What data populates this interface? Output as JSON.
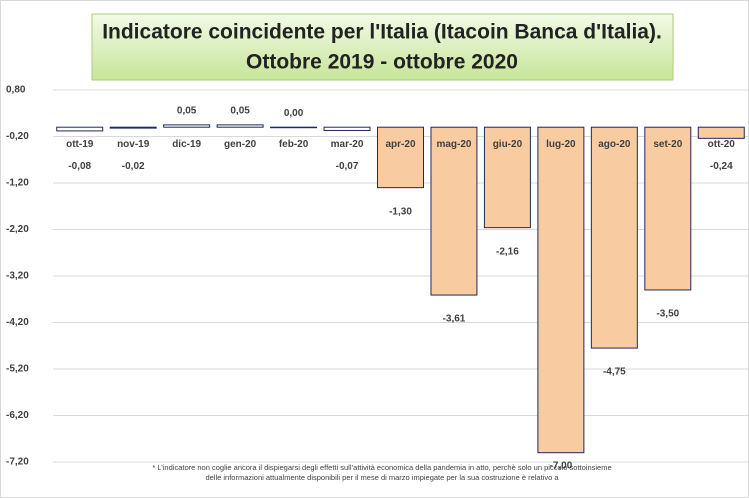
{
  "chart_data": {
    "type": "bar",
    "title": "Indicatore coincidente per l'Italia (Itacoin Banca d'Italia).",
    "subtitle": "Ottobre 2019 - ottobre 2020",
    "categories": [
      "ott-19",
      "nov-19",
      "dic-19",
      "gen-20",
      "feb-20",
      "mar-20",
      "apr-20",
      "mag-20",
      "giu-20",
      "lug-20",
      "ago-20",
      "set-20",
      "ott-20"
    ],
    "values": [
      -0.08,
      -0.02,
      0.05,
      0.05,
      0.0,
      -0.07,
      -1.3,
      -3.61,
      -2.16,
      -7.0,
      -4.75,
      -3.5,
      -0.24
    ],
    "value_labels": [
      "-0,08",
      "-0,02",
      "0,05",
      "0,05",
      "0,00",
      "-0,07",
      "-1,30",
      "-3,61",
      "-2,16",
      "-7,00",
      "-4,75",
      "-3,50",
      "-0,24"
    ],
    "colors": [
      "#ffffff",
      "#ffffff",
      "#ffffff",
      "#ffffff",
      "#ffffff",
      "#ffffff",
      "#f8cba0",
      "#f8cba0",
      "#f8cba0",
      "#f8cba0",
      "#f8cba0",
      "#f8cba0",
      "#f8cba0"
    ],
    "ylim": [
      -7.2,
      0.8
    ],
    "yticks": [
      {
        "value": 0.8,
        "label": "0,80"
      },
      {
        "value": -0.2,
        "label": "-0,20"
      },
      {
        "value": -1.2,
        "label": "-1,20"
      },
      {
        "value": -2.2,
        "label": "-2,20"
      },
      {
        "value": -3.2,
        "label": "-3,20"
      },
      {
        "value": -4.2,
        "label": "-4,20"
      },
      {
        "value": -5.2,
        "label": "-5,20"
      },
      {
        "value": -6.2,
        "label": "-6,20"
      },
      {
        "value": -7.2,
        "label": "-7,20"
      }
    ],
    "grid": true,
    "annotations": [
      "* L’indicatore non coglie ancora il dispiegarsi degli effetti sull’attività  economica della pandemia in atto,  perchè solo un piccolo sottoinsieme",
      "delle informazioni attualmente  disponibili per il mese di marzo impiegate per la sua costruzione è relativo a"
    ]
  }
}
